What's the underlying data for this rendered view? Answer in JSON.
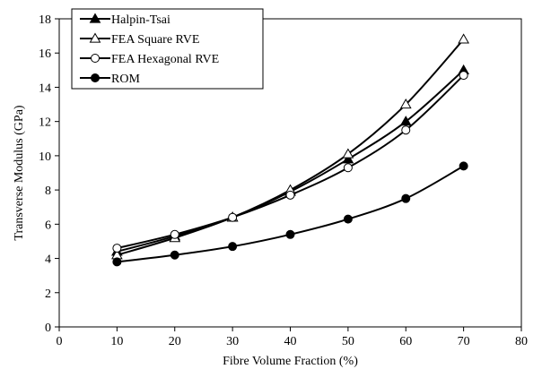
{
  "colors": {
    "line": "#000000",
    "background": "#ffffff",
    "open_marker_fill": "#ffffff"
  },
  "chart_data": {
    "type": "line",
    "title": "",
    "xlabel": "Fibre Volume Fraction (%)",
    "ylabel": "Transverse Modulus (GPa)",
    "xlim": [
      0,
      80
    ],
    "ylim": [
      0,
      18
    ],
    "xticks": [
      0,
      10,
      20,
      30,
      40,
      50,
      60,
      70,
      80
    ],
    "yticks": [
      0,
      2,
      4,
      6,
      8,
      10,
      12,
      14,
      16,
      18
    ],
    "grid": false,
    "legend_position": "top-left",
    "x": [
      10,
      20,
      30,
      40,
      50,
      60,
      70
    ],
    "series": [
      {
        "name": "Halpin-Tsai",
        "marker": "filled-triangle",
        "values": [
          4.4,
          5.3,
          6.4,
          7.9,
          9.8,
          12.0,
          15.0
        ]
      },
      {
        "name": "FEA Square RVE",
        "marker": "open-triangle",
        "values": [
          4.2,
          5.2,
          6.4,
          8.0,
          10.1,
          13.0,
          16.8
        ]
      },
      {
        "name": "FEA Hexagonal RVE",
        "marker": "open-circle",
        "values": [
          4.6,
          5.4,
          6.4,
          7.7,
          9.3,
          11.5,
          14.7
        ]
      },
      {
        "name": "ROM",
        "marker": "filled-circle",
        "values": [
          3.8,
          4.2,
          4.7,
          5.4,
          6.3,
          7.5,
          9.4
        ]
      }
    ]
  }
}
